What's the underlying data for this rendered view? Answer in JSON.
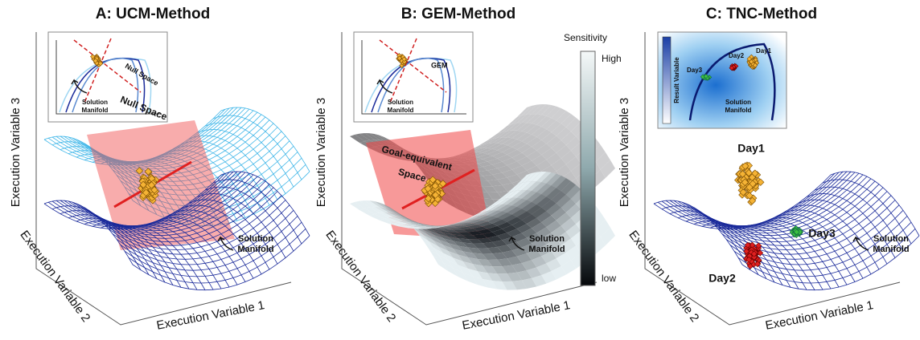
{
  "panels": [
    {
      "title": "A: UCM-Method",
      "axis_labels": {
        "z": "Execution Variable 3",
        "y": "Execution Variable 2",
        "x": "Execution Variable 1"
      },
      "inset": {
        "space_label": "Null Space",
        "manifold_label": [
          "Solution",
          "Manifold"
        ]
      },
      "space_label": "Null Space",
      "manifold_label": [
        "Solution",
        "Manifold"
      ]
    },
    {
      "title": "B: GEM-Method",
      "axis_labels": {
        "z": "Execution Variable 3",
        "y": "Execution Variable 2",
        "x": "Execution Variable 1"
      },
      "inset": {
        "space_label": "GEM",
        "manifold_label": [
          "Solution",
          "Manifold"
        ]
      },
      "space_label": [
        "Goal-equivalent",
        "Space"
      ],
      "manifold_label": [
        "Solution",
        "Manifold"
      ],
      "colorbar": {
        "title": "Sensitivity",
        "high": "High",
        "low": "low"
      }
    },
    {
      "title": "C: TNC-Method",
      "axis_labels": {
        "z": "Execution Variable 3",
        "y": "Execution Variable 2",
        "x": "Execution Variable 1"
      },
      "inset": {
        "axis_label": "Result Variable",
        "day_labels": [
          "Day2",
          "Day1",
          "Day3"
        ],
        "manifold_label": [
          "Solution",
          "Manifold"
        ]
      },
      "day_labels": [
        "Day1",
        "Day2",
        "Day3"
      ],
      "manifold_label": [
        "Solution",
        "Manifold"
      ]
    }
  ]
}
